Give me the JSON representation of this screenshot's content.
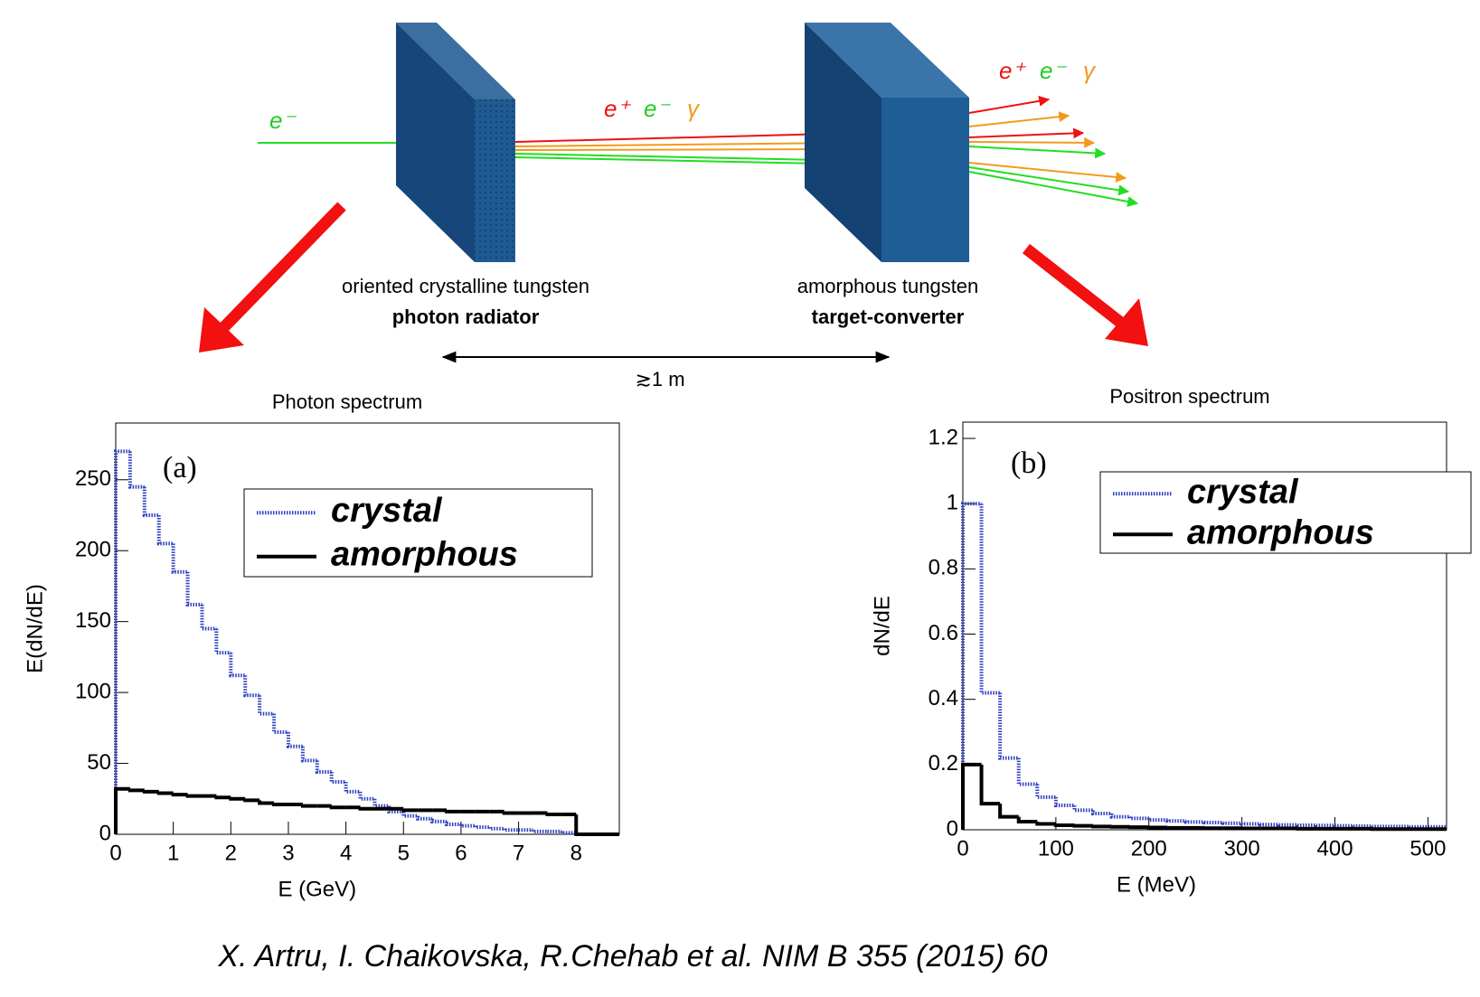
{
  "diagram": {
    "beam_label": "e⁻",
    "particles": [
      "e⁺",
      "e⁻",
      "γ"
    ],
    "radiator": {
      "material": "oriented crystalline tungsten",
      "role": "photon radiator"
    },
    "converter": {
      "material": "amorphous tungsten",
      "role": "target-converter"
    },
    "distance": "≳1 m"
  },
  "chart_data": [
    {
      "type": "histogram",
      "title": "Photon spectrum",
      "annotation": "(a)",
      "x_label": "E (GeV)",
      "y_label": "E(dN/dE)",
      "bins": [
        0,
        0.25,
        0.5,
        0.75,
        1,
        1.25,
        1.5,
        1.75,
        2,
        2.25,
        2.5,
        2.75,
        3,
        3.25,
        3.5,
        3.75,
        4,
        4.25,
        4.5,
        4.75,
        5,
        5.25,
        5.5,
        5.75,
        6,
        6.25,
        6.5,
        6.75,
        7,
        7.25,
        7.5,
        7.75,
        8,
        8.25,
        8.5,
        8.75
      ],
      "series": [
        {
          "name": "crystal",
          "color": "#2b3fbf",
          "dashed": true,
          "values": [
            270,
            245,
            225,
            205,
            185,
            162,
            145,
            128,
            112,
            98,
            85,
            72,
            62,
            52,
            44,
            37,
            30,
            25,
            20,
            16,
            13,
            11,
            9,
            7,
            6,
            5,
            4,
            3,
            3,
            2,
            2,
            1,
            0,
            0,
            0
          ]
        },
        {
          "name": "amorphous",
          "color": "#000000",
          "dashed": false,
          "values": [
            32,
            31,
            30,
            29,
            28,
            27,
            27,
            26,
            25,
            24,
            22,
            21,
            21,
            20,
            20,
            19,
            19,
            18,
            18,
            18,
            17,
            17,
            17,
            16,
            16,
            16,
            16,
            15,
            15,
            15,
            14,
            14,
            0,
            0,
            0
          ]
        }
      ],
      "xlim": [
        0,
        8.75
      ],
      "ylim": [
        0,
        290
      ],
      "xticks": [
        0,
        1,
        2,
        3,
        4,
        5,
        6,
        7,
        8
      ],
      "yticks": [
        0,
        50,
        100,
        150,
        200,
        250
      ]
    },
    {
      "type": "histogram",
      "title": "Positron spectrum",
      "annotation": "(b)",
      "x_label": "E (MeV)",
      "y_label": "dN/dE",
      "bins": [
        0,
        20,
        40,
        60,
        80,
        100,
        120,
        140,
        160,
        180,
        200,
        220,
        240,
        260,
        280,
        300,
        320,
        340,
        360,
        380,
        400,
        420,
        440,
        460,
        480,
        500,
        520
      ],
      "series": [
        {
          "name": "crystal",
          "color": "#2b3fbf",
          "dashed": true,
          "values": [
            1.0,
            0.42,
            0.22,
            0.14,
            0.1,
            0.075,
            0.06,
            0.05,
            0.04,
            0.035,
            0.03,
            0.027,
            0.024,
            0.022,
            0.02,
            0.018,
            0.016,
            0.015,
            0.014,
            0.013,
            0.012,
            0.011,
            0.01,
            0.01,
            0.009,
            0.009
          ]
        },
        {
          "name": "amorphous",
          "color": "#000000",
          "dashed": false,
          "values": [
            0.2,
            0.08,
            0.04,
            0.025,
            0.018,
            0.014,
            0.012,
            0.01,
            0.009,
            0.008,
            0.007,
            0.006,
            0.006,
            0.005,
            0.005,
            0.004,
            0.004,
            0.004,
            0.003,
            0.003,
            0.003,
            0.003,
            0.002,
            0.002,
            0.002,
            0.002
          ]
        }
      ],
      "xlim": [
        0,
        520
      ],
      "ylim": [
        0,
        1.25
      ],
      "xticks": [
        0,
        100,
        200,
        300,
        400,
        500
      ],
      "yticks": [
        0,
        0.2,
        0.4,
        0.6,
        0.8,
        1,
        1.2
      ]
    }
  ],
  "citation": "X. Artru, I. Chaikovska, R.Chehab et al. NIM B 355 (2015) 60"
}
